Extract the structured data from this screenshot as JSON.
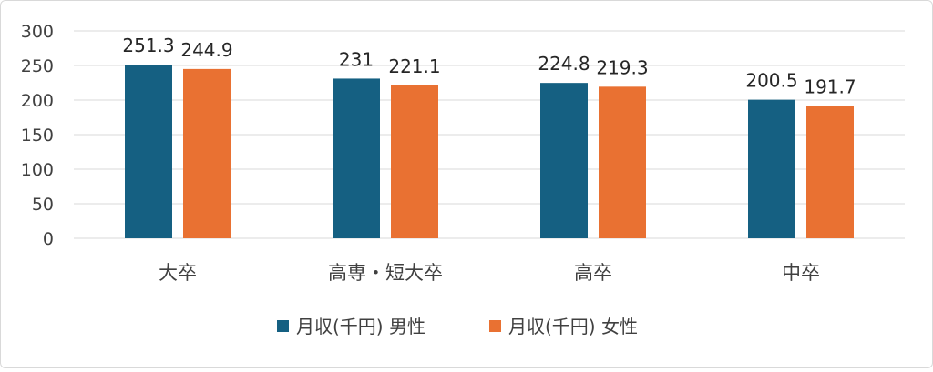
{
  "chart_data": {
    "type": "bar",
    "categories": [
      "大卒",
      "高専・短大卒",
      "高卒",
      "中卒"
    ],
    "series": [
      {
        "name": "月収(千円) 男性",
        "values": [
          251.3,
          231,
          224.8,
          200.5
        ],
        "color": "#156082"
      },
      {
        "name": "月収(千円) 女性",
        "values": [
          244.9,
          221.1,
          219.3,
          191.7
        ],
        "color": "#E97132"
      }
    ],
    "data_labels": [
      [
        "251.3",
        "231",
        "224.8",
        "200.5"
      ],
      [
        "244.9",
        "221.1",
        "219.3",
        "191.7"
      ]
    ],
    "y_ticks": [
      "0",
      "50",
      "100",
      "150",
      "200",
      "250",
      "300"
    ],
    "ylim": [
      0,
      300
    ],
    "grid": true,
    "legend_position": "bottom",
    "title": "",
    "xlabel": "",
    "ylabel": ""
  }
}
